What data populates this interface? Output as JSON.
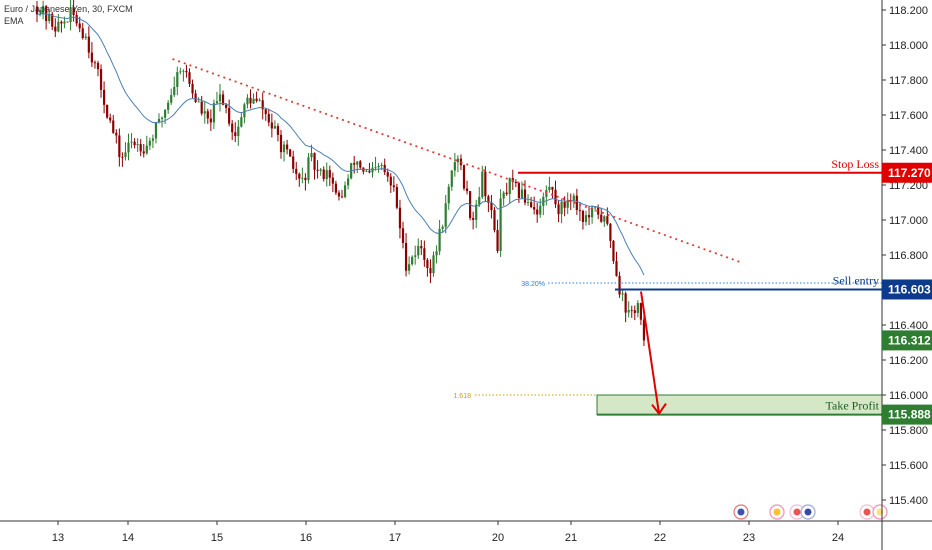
{
  "header": {
    "symbol_title": "Euro / Japanese Yen, 30, FXCM",
    "indicator": "EMA"
  },
  "colors": {
    "up_candle": "#2e7d32",
    "down_candle": "#8b0000",
    "ema_line": "#4a7fb5",
    "trendline": "#e53935",
    "stop_loss": "#e00000",
    "sell_entry": "#0d3b8c",
    "take_profit": "#2e7d32",
    "take_profit_fill": "#d4e8c8",
    "current_price": "#2e7d32",
    "fib_38": "#2a7fd4",
    "fib_1618": "#c8a200"
  },
  "annotations": {
    "stop_loss": {
      "label": "Stop Loss",
      "price": "117.270"
    },
    "sell_entry": {
      "label": "Sell entry",
      "price": "116.603",
      "fib_label": "38.20%"
    },
    "take_profit": {
      "label": "Take Profit",
      "price": "115.888",
      "fib_label": "1.618"
    },
    "current_price": "116.312"
  },
  "chart_data": {
    "type": "candlestick",
    "x_tick_labels": [
      "13",
      "14",
      "15",
      "16",
      "17",
      "20",
      "21",
      "22",
      "23",
      "24"
    ],
    "y_tick_labels": [
      "118.200",
      "118.000",
      "117.800",
      "117.600",
      "117.400",
      "117.200",
      "117.000",
      "116.800",
      "116.600",
      "116.400",
      "116.200",
      "116.000",
      "115.800",
      "115.600",
      "115.400"
    ],
    "ylim": [
      115.33,
      118.29
    ],
    "trendline": {
      "from": {
        "x": 14.5,
        "y": 117.92
      },
      "to": {
        "x": 22.9,
        "y": 116.76
      }
    },
    "stop_loss_price": 117.27,
    "sell_entry_price": 116.603,
    "take_profit_price": 115.888,
    "take_profit_zone": [
      115.888,
      116.0
    ],
    "fib_382_price": 116.64,
    "fib_1618_price": 116.0,
    "current_price": 116.312,
    "price_path": [
      [
        12.7,
        118.22
      ],
      [
        12.85,
        118.15
      ],
      [
        13.0,
        118.1
      ],
      [
        13.2,
        118.18
      ],
      [
        13.4,
        118.05
      ],
      [
        13.55,
        117.85
      ],
      [
        13.75,
        117.55
      ],
      [
        13.9,
        117.35
      ],
      [
        14.05,
        117.45
      ],
      [
        14.2,
        117.42
      ],
      [
        14.35,
        117.55
      ],
      [
        14.5,
        117.75
      ],
      [
        14.6,
        117.9
      ],
      [
        14.75,
        117.7
      ],
      [
        14.9,
        117.55
      ],
      [
        15.05,
        117.72
      ],
      [
        15.2,
        117.48
      ],
      [
        15.35,
        117.7
      ],
      [
        15.5,
        117.65
      ],
      [
        15.65,
        117.5
      ],
      [
        15.8,
        117.35
      ],
      [
        15.95,
        117.2
      ],
      [
        16.05,
        117.35
      ],
      [
        16.15,
        117.25
      ],
      [
        16.25,
        117.3
      ],
      [
        16.35,
        117.1
      ],
      [
        16.45,
        117.2
      ],
      [
        16.55,
        117.35
      ],
      [
        16.7,
        117.25
      ],
      [
        16.85,
        117.3
      ],
      [
        17.0,
        117.15
      ],
      [
        17.1,
        116.75
      ],
      [
        17.25,
        116.85
      ],
      [
        17.35,
        116.7
      ],
      [
        17.5,
        117.1
      ],
      [
        17.6,
        117.4
      ],
      [
        17.75,
        117.0
      ],
      [
        17.85,
        117.25
      ],
      [
        18.0,
        116.85
      ],
      [
        18.15,
        116.65
      ],
      [
        18.3,
        116.7
      ],
      [
        18.45,
        117.05
      ],
      [
        18.6,
        116.95
      ],
      [
        18.75,
        117.0
      ],
      [
        18.9,
        116.9
      ],
      [
        20.0,
        117.05
      ],
      [
        20.15,
        117.2
      ],
      [
        20.3,
        117.15
      ],
      [
        20.45,
        117.1
      ],
      [
        20.55,
        117.05
      ],
      [
        20.7,
        117.2
      ],
      [
        20.85,
        117.05
      ],
      [
        21.0,
        117.15
      ],
      [
        21.15,
        117.0
      ],
      [
        21.3,
        117.05
      ],
      [
        21.42,
        116.95
      ],
      [
        21.55,
        116.6
      ],
      [
        21.65,
        116.45
      ],
      [
        21.75,
        116.52
      ],
      [
        21.82,
        116.31
      ]
    ]
  }
}
